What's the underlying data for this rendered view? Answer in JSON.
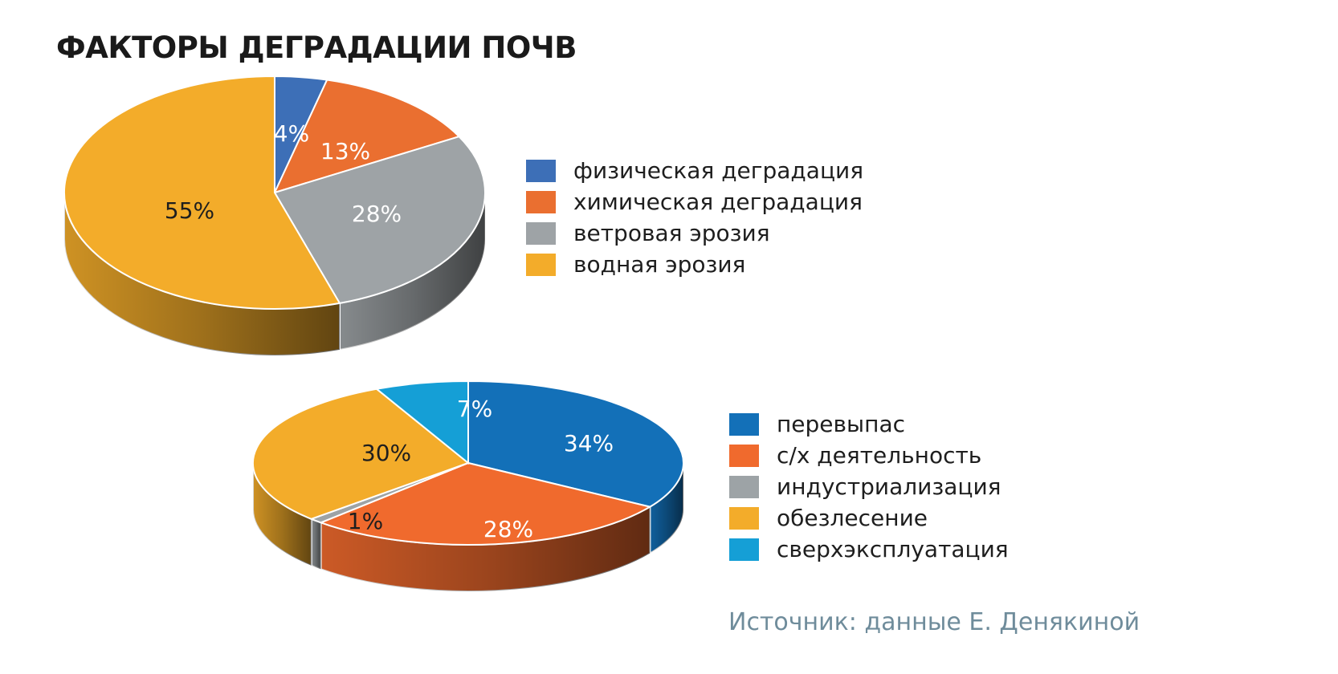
{
  "title": "ФАКТОРЫ ДЕГРАДАЦИИ ПОЧВ",
  "source": "Источник: данные Е. Денякиной",
  "chart_data": [
    {
      "type": "pie",
      "categories": [
        "физическая деградация",
        "химическая деградация",
        "ветровая эрозия",
        "водная эрозия"
      ],
      "values": [
        4,
        13,
        28,
        55
      ],
      "labels": [
        "4%",
        "13%",
        "28%",
        "55%"
      ],
      "label_colors": [
        "#ffffff",
        "#ffffff",
        "#ffffff",
        "#1e1e1e"
      ],
      "colors": [
        "#3d6fb7",
        "#ea6f30",
        "#9ea3a6",
        "#f3ac2a"
      ],
      "legend_position": "right",
      "start_angle_deg": 0
    },
    {
      "type": "pie",
      "categories": [
        "перевыпас",
        "с/х деятельность",
        "индустриализация",
        "обезлесение",
        "сверхэксплуатация"
      ],
      "values": [
        34,
        28,
        1,
        30,
        7
      ],
      "labels": [
        "34%",
        "28%",
        "1%",
        "30%",
        "7%"
      ],
      "label_colors": [
        "#ffffff",
        "#ffffff",
        "#1e1e1e",
        "#1e1e1e",
        "#ffffff"
      ],
      "colors": [
        "#1370b8",
        "#f06a2d",
        "#9da3a6",
        "#f3ac2a",
        "#159fd6"
      ],
      "legend_position": "right",
      "start_angle_deg": 0
    }
  ]
}
